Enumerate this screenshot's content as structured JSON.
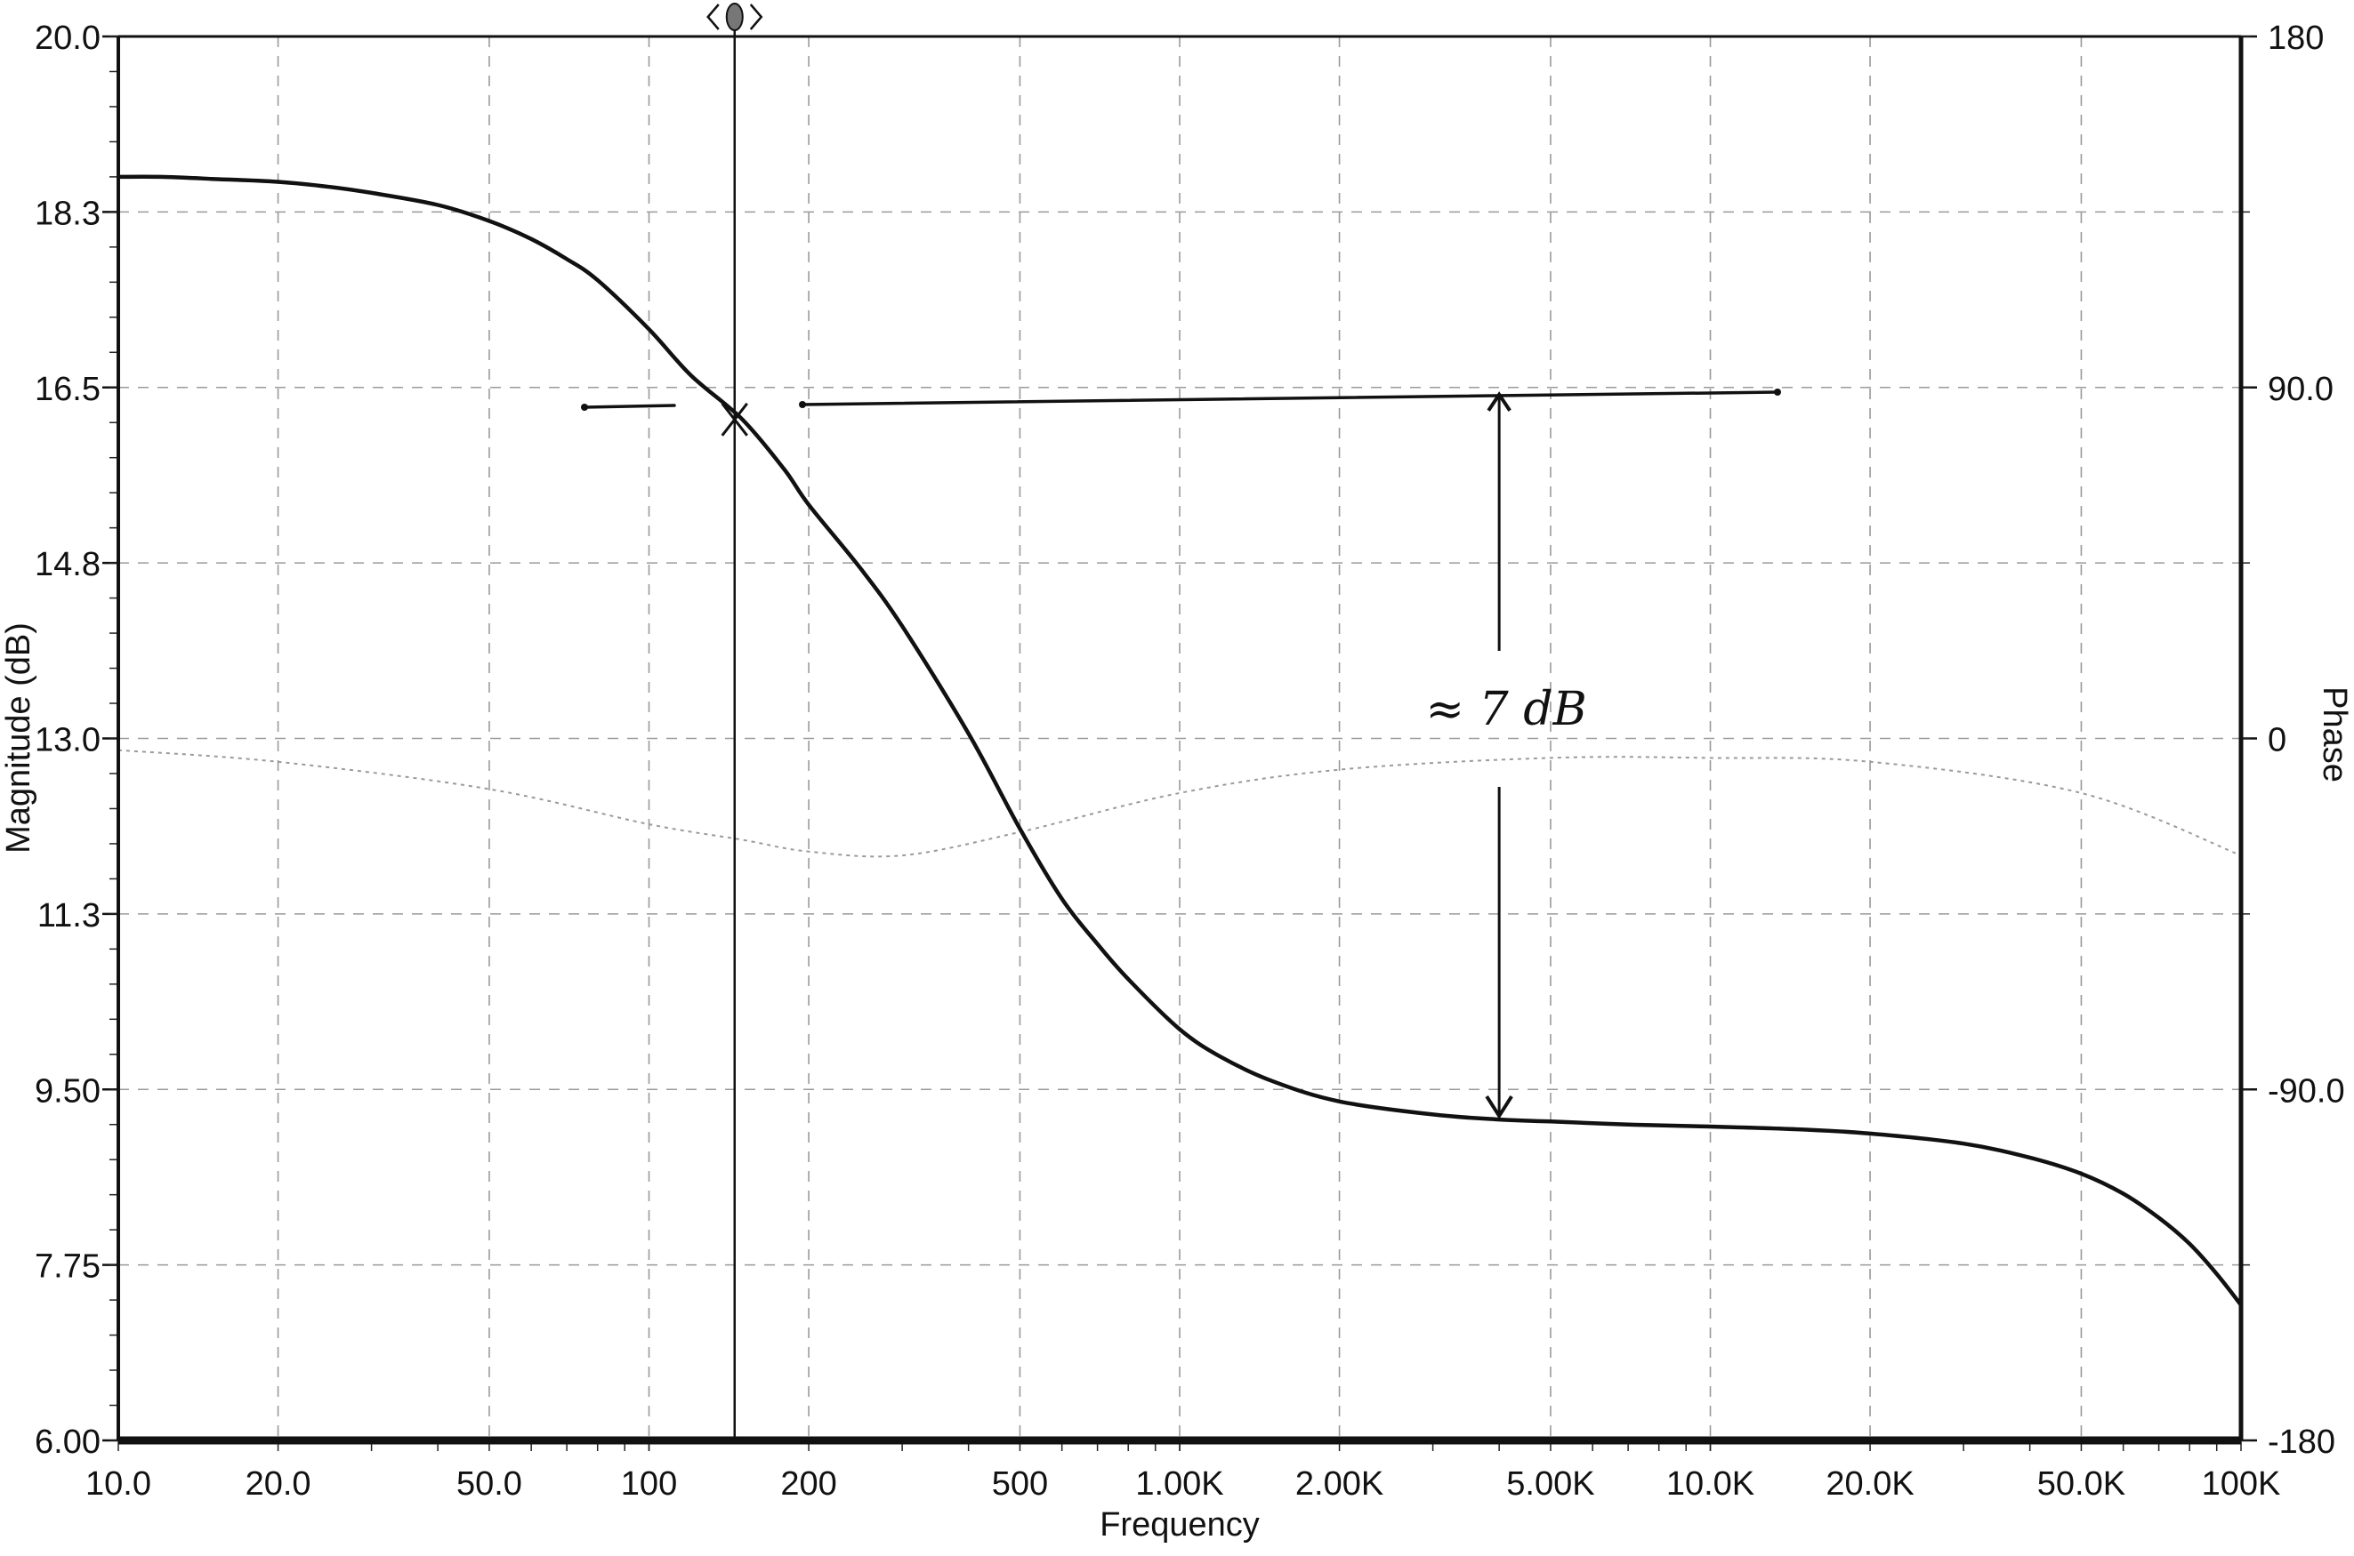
{
  "chart_data": {
    "type": "line",
    "xlabel": "Frequency",
    "ylabel_left": "Magnitude  (dB)",
    "ylabel_right": "Phase",
    "x_scale": "log",
    "xlim": [
      10,
      100000
    ],
    "ylim_left": [
      6.0,
      20.0
    ],
    "ylim_right": [
      -180,
      180
    ],
    "grid": true,
    "x_ticks": [
      {
        "value": 10,
        "label": "10.0"
      },
      {
        "value": 20,
        "label": "20.0"
      },
      {
        "value": 50,
        "label": "50.0"
      },
      {
        "value": 100,
        "label": "100"
      },
      {
        "value": 200,
        "label": "200"
      },
      {
        "value": 500,
        "label": "500"
      },
      {
        "value": 1000,
        "label": "1.00K"
      },
      {
        "value": 2000,
        "label": "2.00K"
      },
      {
        "value": 5000,
        "label": "5.00K"
      },
      {
        "value": 10000,
        "label": "10.0K"
      },
      {
        "value": 20000,
        "label": "20.0K"
      },
      {
        "value": 50000,
        "label": "50.0K"
      },
      {
        "value": 100000,
        "label": "100K"
      }
    ],
    "y_left_ticks": [
      {
        "value": 20.0,
        "label": "20.0"
      },
      {
        "value": 18.25,
        "label": "18.3"
      },
      {
        "value": 16.5,
        "label": "16.5"
      },
      {
        "value": 14.75,
        "label": "14.8"
      },
      {
        "value": 13.0,
        "label": "13.0"
      },
      {
        "value": 11.25,
        "label": "11.3"
      },
      {
        "value": 9.5,
        "label": "9.50"
      },
      {
        "value": 7.75,
        "label": "7.75"
      },
      {
        "value": 6.0,
        "label": "6.00"
      }
    ],
    "y_right_ticks": [
      {
        "value": 180,
        "label": "180"
      },
      {
        "value": 90,
        "label": "90.0"
      },
      {
        "value": 0,
        "label": "0"
      },
      {
        "value": -90,
        "label": "-90.0"
      },
      {
        "value": -180,
        "label": "-180"
      }
    ],
    "series": [
      {
        "axis": "left",
        "style": "solid",
        "color": "#111111",
        "x": [
          10,
          12,
          15,
          20,
          25,
          30,
          40,
          50,
          60,
          70,
          80,
          100,
          120,
          150,
          180,
          200,
          250,
          300,
          400,
          500,
          600,
          700,
          800,
          1000,
          1200,
          1500,
          2000,
          3000,
          4000,
          5000,
          7000,
          10000,
          15000,
          20000,
          30000,
          40000,
          50000,
          60000,
          70000,
          80000,
          90000,
          100000
        ],
        "y": [
          18.6,
          18.6,
          18.58,
          18.55,
          18.5,
          18.44,
          18.32,
          18.16,
          17.98,
          17.78,
          17.57,
          17.08,
          16.62,
          16.18,
          15.68,
          15.33,
          14.7,
          14.12,
          13.05,
          12.1,
          11.4,
          10.95,
          10.6,
          10.1,
          9.82,
          9.58,
          9.38,
          9.25,
          9.2,
          9.18,
          9.15,
          9.13,
          9.1,
          9.06,
          8.96,
          8.82,
          8.66,
          8.46,
          8.22,
          7.96,
          7.66,
          7.35
        ]
      },
      {
        "axis": "right",
        "style": "dotted",
        "color": "#9a9a9a",
        "x": [
          10,
          20,
          50,
          100,
          150,
          200,
          300,
          500,
          1000,
          2000,
          5000,
          10000,
          20000,
          50000,
          100000
        ],
        "y": [
          -3,
          -6,
          -13,
          -22,
          -26,
          -29,
          -30,
          -24,
          -14,
          -8,
          -5,
          -5,
          -6,
          -14,
          -30
        ]
      }
    ],
    "cursor": {
      "x": 145,
      "y": 16.18
    },
    "annotations": [
      {
        "text": "≈ 7 dB",
        "kind": "handwritten-dimension",
        "x": 4000,
        "y_top": 16.5,
        "y_bottom": 9.2
      }
    ]
  }
}
